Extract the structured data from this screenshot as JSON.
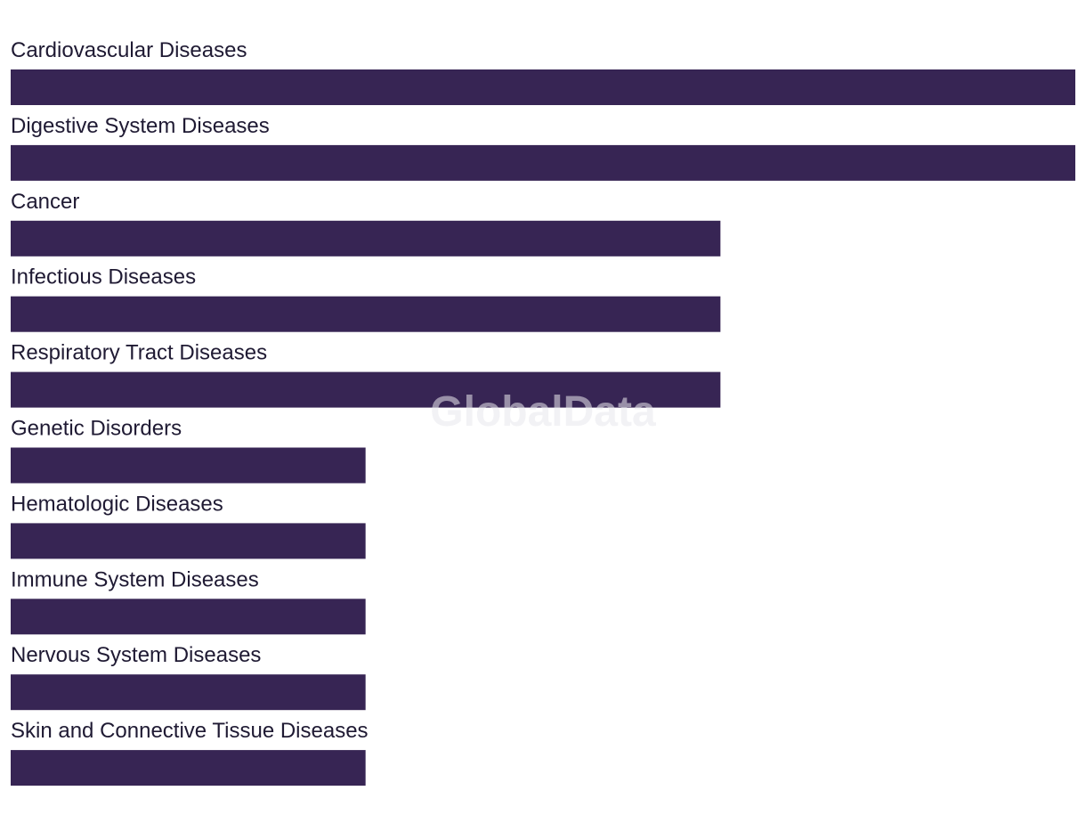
{
  "watermark": "GlobalData",
  "chart_data": {
    "type": "bar",
    "orientation": "horizontal",
    "bar_color": "#372554",
    "categories": [
      "Cardiovascular Diseases",
      "Digestive System Diseases",
      "Cancer",
      "Infectious Diseases",
      "Respiratory Tract Diseases",
      "Genetic Disorders",
      "Hematologic Diseases",
      "Immune System Diseases",
      "Nervous System Diseases",
      "Skin and Connective Tissue Diseases"
    ],
    "values": [
      3,
      3,
      2,
      2,
      2,
      1,
      1,
      1,
      1,
      1
    ],
    "xlim": [
      0,
      3
    ],
    "grid": false,
    "legend": "none"
  }
}
